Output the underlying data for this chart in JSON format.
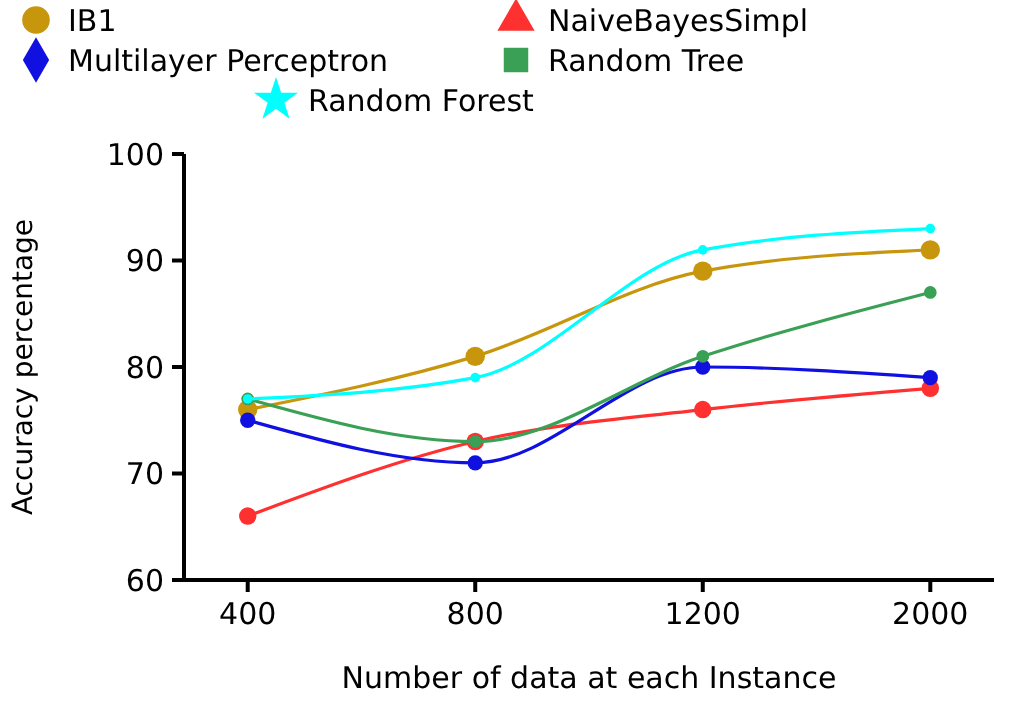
{
  "chart_data": {
    "type": "line",
    "xlabel": "Number of data at each Instance",
    "ylabel": "Accuracy percentage",
    "categories": [
      "400",
      "800",
      "1200",
      "2000"
    ],
    "ylim": [
      60,
      100
    ],
    "yticks": [
      60,
      70,
      80,
      90,
      100
    ],
    "grid": false,
    "legend": "top",
    "marker": "circle",
    "series": [
      {
        "name": "IB1",
        "color": "#c8960c",
        "values": [
          76,
          81,
          89,
          91
        ]
      },
      {
        "name": "NaiveBayesSimpl",
        "color": "#ff3030",
        "values": [
          66,
          73,
          76,
          78
        ]
      },
      {
        "name": "Multilayer Perceptron",
        "color": "#1010e0",
        "values": [
          75,
          71,
          80,
          79
        ]
      },
      {
        "name": "Random Tree",
        "color": "#3aa055",
        "values": [
          77,
          73,
          81,
          87
        ]
      },
      {
        "name": "Random Forest",
        "color": "#00ffff",
        "values": [
          77,
          79,
          91,
          93
        ]
      }
    ]
  }
}
